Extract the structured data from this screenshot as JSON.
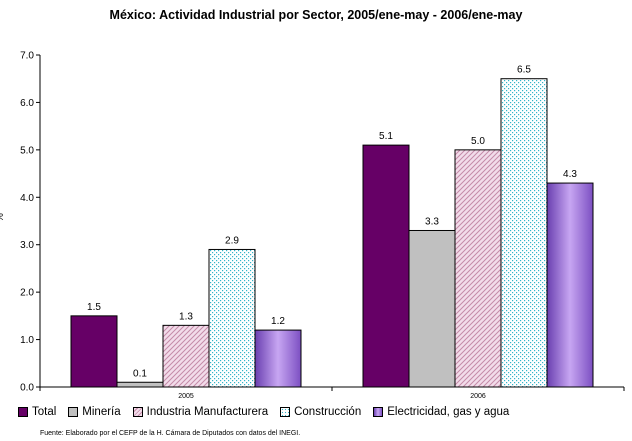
{
  "chart_data": {
    "type": "bar",
    "title": "México: Actividad Industrial por Sector, 2005/ene-may - 2006/ene-may",
    "ylabel": "%",
    "xlabel": "",
    "ylim": [
      0,
      7
    ],
    "yticks": [
      "0.0",
      "1.0",
      "2.0",
      "3.0",
      "4.0",
      "5.0",
      "6.0",
      "7.0"
    ],
    "categories": [
      "2005",
      "2006"
    ],
    "series": [
      {
        "name": "Total",
        "values": [
          1.5,
          5.1
        ],
        "labels": [
          "1.5",
          "5.1"
        ],
        "color": "#660066",
        "pattern": "solid"
      },
      {
        "name": "Minería",
        "values": [
          0.1,
          3.3
        ],
        "labels": [
          "0.1",
          "3.3"
        ],
        "color": "#c0c0c0",
        "pattern": "solid"
      },
      {
        "name": "Industria Manufacturera",
        "values": [
          1.3,
          5.0
        ],
        "labels": [
          "1.3",
          "5.0"
        ],
        "color": "#f2dcea",
        "pattern": "diagonal-pink"
      },
      {
        "name": "Construcción",
        "values": [
          2.9,
          6.5
        ],
        "labels": [
          "2.9",
          "6.5"
        ],
        "color": "#e6f7ff",
        "pattern": "cyan-dots"
      },
      {
        "name": "Electricidad, gas y agua",
        "values": [
          1.2,
          4.3
        ],
        "labels": [
          "1.2",
          "4.3"
        ],
        "color": "#9966cc",
        "pattern": "gradient-violet"
      }
    ],
    "grid": false,
    "legend": "bottom"
  },
  "source": "Fuente: Elaborado por el CEFP de la H. Cámara de Diputados con datos del INEGI."
}
